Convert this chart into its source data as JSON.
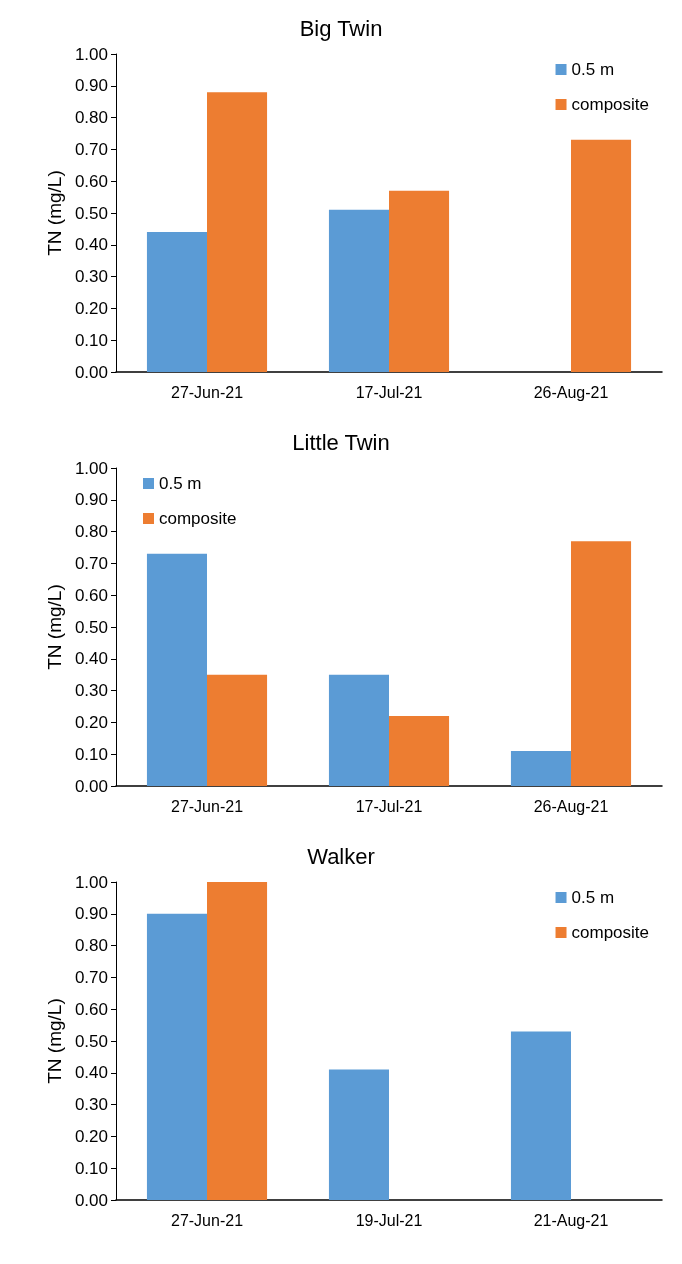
{
  "chart_data": [
    {
      "type": "bar",
      "title": "Big Twin",
      "ylabel": "TN (mg/L)",
      "categories": [
        "27-Jun-21",
        "17-Jul-21",
        "26-Aug-21"
      ],
      "series": [
        {
          "name": "0.5 m",
          "color": "#5b9bd5",
          "values": [
            0.44,
            0.51,
            null
          ]
        },
        {
          "name": "composite",
          "color": "#ed7d31",
          "values": [
            0.88,
            0.57,
            0.73
          ]
        }
      ],
      "ylim": [
        0,
        1
      ],
      "yticks": [
        {
          "value": 0,
          "label": "0.00"
        },
        {
          "value": 0.1,
          "label": "0.10"
        },
        {
          "value": 0.2,
          "label": "0.20"
        },
        {
          "value": 0.3,
          "label": "0.30"
        },
        {
          "value": 0.4,
          "label": "0.40"
        },
        {
          "value": 0.5,
          "label": "0.50"
        },
        {
          "value": 0.6,
          "label": "0.60"
        },
        {
          "value": 0.7,
          "label": "0.70"
        },
        {
          "value": 0.8,
          "label": "0.80"
        },
        {
          "value": 0.9,
          "label": "0.90"
        },
        {
          "value": 1,
          "label": "1.00"
        }
      ],
      "grid": false,
      "legend": "top right"
    },
    {
      "type": "bar",
      "title": "Little Twin",
      "ylabel": "TN (mg/L)",
      "categories": [
        "27-Jun-21",
        "17-Jul-21",
        "26-Aug-21"
      ],
      "series": [
        {
          "name": "0.5 m",
          "color": "#5b9bd5",
          "values": [
            0.73,
            0.35,
            0.11
          ]
        },
        {
          "name": "composite",
          "color": "#ed7d31",
          "values": [
            0.35,
            0.22,
            0.77
          ]
        }
      ],
      "ylim": [
        0,
        1
      ],
      "yticks": [
        {
          "value": 0,
          "label": "0.00"
        },
        {
          "value": 0.1,
          "label": "0.10"
        },
        {
          "value": 0.2,
          "label": "0.20"
        },
        {
          "value": 0.3,
          "label": "0.30"
        },
        {
          "value": 0.4,
          "label": "0.40"
        },
        {
          "value": 0.5,
          "label": "0.50"
        },
        {
          "value": 0.6,
          "label": "0.60"
        },
        {
          "value": 0.7,
          "label": "0.70"
        },
        {
          "value": 0.8,
          "label": "0.80"
        },
        {
          "value": 0.9,
          "label": "0.90"
        },
        {
          "value": 1,
          "label": "1.00"
        }
      ],
      "grid": false,
      "legend": "top left"
    },
    {
      "type": "bar",
      "title": "Walker",
      "ylabel": "TN (mg/L)",
      "categories": [
        "27-Jun-21",
        "19-Jul-21",
        "21-Aug-21"
      ],
      "series": [
        {
          "name": "0.5 m",
          "color": "#5b9bd5",
          "values": [
            0.9,
            0.41,
            0.53
          ]
        },
        {
          "name": "composite",
          "color": "#ed7d31",
          "values": [
            1.0,
            null,
            null
          ]
        }
      ],
      "ylim": [
        0,
        1
      ],
      "yticks": [
        {
          "value": 0,
          "label": "0.00"
        },
        {
          "value": 0.1,
          "label": "0.10"
        },
        {
          "value": 0.2,
          "label": "0.20"
        },
        {
          "value": 0.3,
          "label": "0.30"
        },
        {
          "value": 0.4,
          "label": "0.40"
        },
        {
          "value": 0.5,
          "label": "0.50"
        },
        {
          "value": 0.6,
          "label": "0.60"
        },
        {
          "value": 0.7,
          "label": "0.70"
        },
        {
          "value": 0.8,
          "label": "0.80"
        },
        {
          "value": 0.9,
          "label": "0.90"
        },
        {
          "value": 1,
          "label": "1.00"
        }
      ],
      "grid": false,
      "legend": "top right"
    }
  ]
}
